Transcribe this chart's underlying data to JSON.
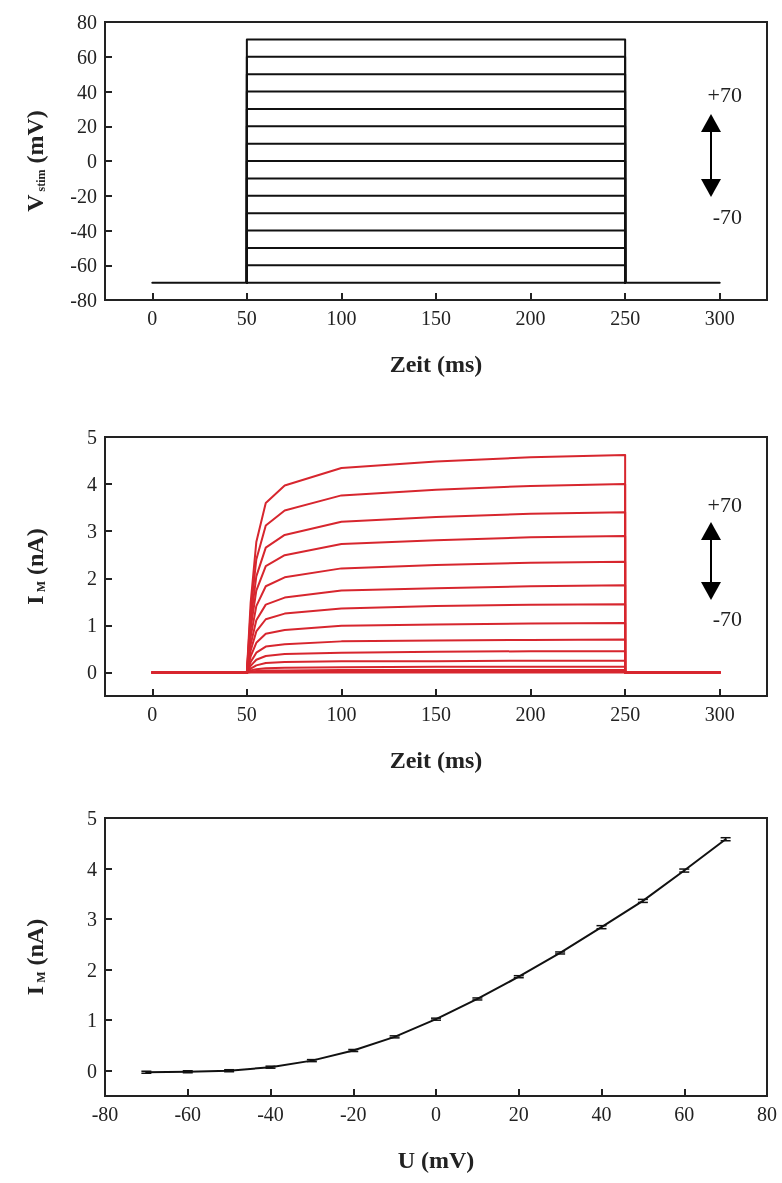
{
  "chart_data": [
    {
      "type": "line",
      "xlabel": "Zeit (ms)",
      "ylabel": "V$_{stim}$ (mV)",
      "xlim": [
        -25,
        325
      ],
      "xticks": [
        0,
        50,
        100,
        150,
        200,
        250,
        300
      ],
      "ylim": [
        -80,
        80
      ],
      "yticks": [
        -80,
        -60,
        -40,
        -20,
        0,
        20,
        40,
        60,
        80
      ],
      "grid": false,
      "marker": "none",
      "line_style": "solid",
      "annotations": [
        "+70",
        "-70"
      ],
      "series": [
        {
          "color": "#111111",
          "x": [
            0,
            300
          ],
          "values": [
            -70,
            -70
          ]
        },
        {
          "color": "#111111",
          "x": [
            50,
            50,
            250,
            250
          ],
          "values": [
            -70,
            -60,
            -60,
            -70
          ]
        },
        {
          "color": "#111111",
          "x": [
            50,
            50,
            250,
            250
          ],
          "values": [
            -70,
            -50,
            -50,
            -70
          ]
        },
        {
          "color": "#111111",
          "x": [
            50,
            50,
            250,
            250
          ],
          "values": [
            -70,
            -40,
            -40,
            -70
          ]
        },
        {
          "color": "#111111",
          "x": [
            50,
            50,
            250,
            250
          ],
          "values": [
            -70,
            -30,
            -30,
            -70
          ]
        },
        {
          "color": "#111111",
          "x": [
            50,
            50,
            250,
            250
          ],
          "values": [
            -70,
            -20,
            -20,
            -70
          ]
        },
        {
          "color": "#111111",
          "x": [
            50,
            50,
            250,
            250
          ],
          "values": [
            -70,
            -10,
            -10,
            -70
          ]
        },
        {
          "color": "#111111",
          "x": [
            50,
            50,
            250,
            250
          ],
          "values": [
            -70,
            0,
            0,
            -70
          ]
        },
        {
          "color": "#111111",
          "x": [
            50,
            50,
            250,
            250
          ],
          "values": [
            -70,
            10,
            10,
            -70
          ]
        },
        {
          "color": "#111111",
          "x": [
            50,
            50,
            250,
            250
          ],
          "values": [
            -70,
            20,
            20,
            -70
          ]
        },
        {
          "color": "#111111",
          "x": [
            50,
            50,
            250,
            250
          ],
          "values": [
            -70,
            30,
            30,
            -70
          ]
        },
        {
          "color": "#111111",
          "x": [
            50,
            50,
            250,
            250
          ],
          "values": [
            -70,
            40,
            40,
            -70
          ]
        },
        {
          "color": "#111111",
          "x": [
            50,
            50,
            250,
            250
          ],
          "values": [
            -70,
            50,
            50,
            -70
          ]
        },
        {
          "color": "#111111",
          "x": [
            50,
            50,
            250,
            250
          ],
          "values": [
            -70,
            60,
            60,
            -70
          ]
        },
        {
          "color": "#111111",
          "x": [
            50,
            50,
            250,
            250
          ],
          "values": [
            -70,
            70,
            70,
            -70
          ]
        }
      ]
    },
    {
      "type": "line",
      "xlabel": "Zeit (ms)",
      "ylabel": "I$_{M}$ (nA)",
      "xlim": [
        -25,
        325
      ],
      "xticks": [
        0,
        50,
        100,
        150,
        200,
        250,
        300
      ],
      "ylim": [
        -0.5,
        5
      ],
      "yticks": [
        0,
        1,
        2,
        3,
        4,
        5
      ],
      "grid": false,
      "marker": "none",
      "line_style": "solid",
      "annotations": [
        "+70",
        "-70"
      ],
      "x": [
        0,
        50,
        52,
        55,
        60,
        70,
        100,
        150,
        200,
        250,
        250,
        300
      ],
      "series": [
        {
          "color": "#d7262e",
          "values": [
            0,
            0,
            0,
            0,
            0,
            0,
            0,
            0,
            0,
            0,
            0,
            0
          ]
        },
        {
          "color": "#d7262e",
          "values": [
            0,
            0,
            0.01,
            0.01,
            0.02,
            0.02,
            0.02,
            0.02,
            0.02,
            0.02,
            0,
            0
          ]
        },
        {
          "color": "#d7262e",
          "values": [
            0,
            0,
            0.02,
            0.03,
            0.04,
            0.04,
            0.05,
            0.05,
            0.05,
            0.05,
            0,
            0
          ]
        },
        {
          "color": "#d7262e",
          "values": [
            0,
            0,
            0.04,
            0.07,
            0.09,
            0.1,
            0.11,
            0.12,
            0.12,
            0.12,
            0,
            0
          ]
        },
        {
          "color": "#d7262e",
          "values": [
            0,
            0,
            0.08,
            0.15,
            0.2,
            0.22,
            0.24,
            0.24,
            0.25,
            0.25,
            0,
            0
          ]
        },
        {
          "color": "#d7262e",
          "values": [
            0,
            0,
            0.14,
            0.27,
            0.35,
            0.39,
            0.42,
            0.44,
            0.45,
            0.45,
            0,
            0
          ]
        },
        {
          "color": "#d7262e",
          "values": [
            0,
            0,
            0.22,
            0.42,
            0.55,
            0.6,
            0.66,
            0.68,
            0.69,
            0.7,
            0,
            0
          ]
        },
        {
          "color": "#d7262e",
          "values": [
            0,
            0,
            0.34,
            0.63,
            0.82,
            0.9,
            0.99,
            1.02,
            1.04,
            1.05,
            0,
            0
          ]
        },
        {
          "color": "#d7262e",
          "values": [
            0,
            0,
            0.46,
            0.87,
            1.13,
            1.25,
            1.36,
            1.41,
            1.44,
            1.45,
            0,
            0
          ]
        },
        {
          "color": "#d7262e",
          "values": [
            0,
            0,
            0.59,
            1.11,
            1.44,
            1.59,
            1.74,
            1.79,
            1.83,
            1.85,
            0,
            0
          ]
        },
        {
          "color": "#d7262e",
          "values": [
            0,
            0,
            0.75,
            1.41,
            1.83,
            2.02,
            2.21,
            2.28,
            2.33,
            2.35,
            0,
            0
          ]
        },
        {
          "color": "#d7262e",
          "values": [
            0,
            0,
            0.93,
            1.74,
            2.26,
            2.49,
            2.73,
            2.81,
            2.87,
            2.9,
            0,
            0
          ]
        },
        {
          "color": "#d7262e",
          "values": [
            0,
            0,
            1.09,
            2.04,
            2.65,
            2.92,
            3.2,
            3.3,
            3.37,
            3.4,
            0,
            0
          ]
        },
        {
          "color": "#d7262e",
          "values": [
            0,
            0,
            1.28,
            2.4,
            3.12,
            3.44,
            3.76,
            3.88,
            3.96,
            4.0,
            0,
            0
          ]
        },
        {
          "color": "#d7262e",
          "values": [
            0,
            0,
            1.48,
            2.77,
            3.6,
            3.97,
            4.34,
            4.48,
            4.57,
            4.62,
            0,
            0
          ]
        }
      ]
    },
    {
      "type": "line",
      "xlabel": "U (mV)",
      "ylabel": "I$_{M}$ (nA)",
      "xlim": [
        -80,
        80
      ],
      "xticks": [
        -80,
        -60,
        -40,
        -20,
        0,
        20,
        40,
        60,
        80
      ],
      "ylim": [
        -0.5,
        5
      ],
      "yticks": [
        0,
        1,
        2,
        3,
        4,
        5
      ],
      "grid": false,
      "marker": "none",
      "line_style": "solid",
      "x": [
        -70,
        -60,
        -50,
        -40,
        -30,
        -20,
        -10,
        0,
        10,
        20,
        30,
        40,
        50,
        60,
        70
      ],
      "series": [
        {
          "color": "#111111",
          "values": [
            -0.03,
            -0.02,
            0.0,
            0.07,
            0.2,
            0.4,
            0.67,
            1.02,
            1.42,
            1.86,
            2.33,
            2.84,
            3.36,
            3.96,
            4.58
          ],
          "errors": [
            0.02,
            0.02,
            0.02,
            0.02,
            0.02,
            0.02,
            0.02,
            0.02,
            0.02,
            0.02,
            0.02,
            0.03,
            0.03,
            0.03,
            0.03
          ]
        }
      ]
    }
  ]
}
